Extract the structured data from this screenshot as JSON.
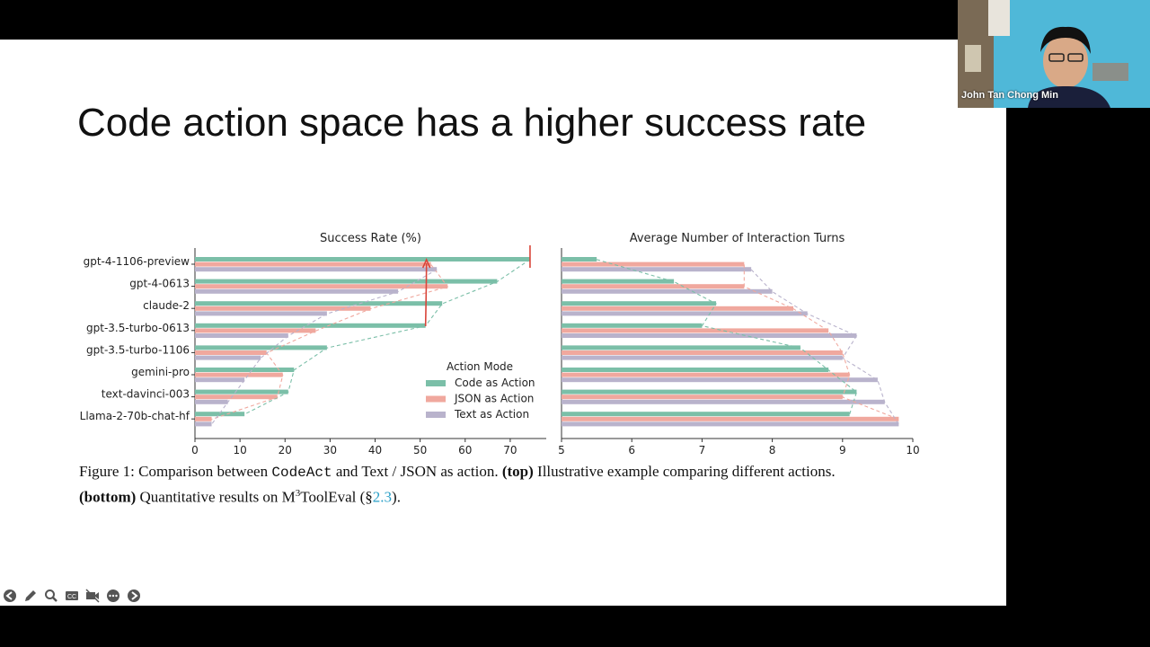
{
  "slide": {
    "title": "Code action space has a higher success rate"
  },
  "video": {
    "participant_name": "John Tan Chong Min"
  },
  "caption": {
    "part1": "Figure 1: Comparison between ",
    "code_term": "CodeAct",
    "part2": " and Text / JSON as action. ",
    "top_label": "(top)",
    "part3": " Illustrative example comparing different actions.",
    "bottom_label": "(bottom)",
    "part4": " Quantitative results on M",
    "superscript": "3",
    "part5": "ToolEval (§",
    "cite": "2.3",
    "part6": ")."
  },
  "toolbar": {
    "icons": [
      "arrow-left-icon",
      "pencil-icon",
      "zoom-icon",
      "captions-icon",
      "video-off-icon",
      "more-icon",
      "arrow-right-icon"
    ]
  },
  "colors": {
    "code": "#7bbfa8",
    "json": "#f0a89e",
    "text": "#b9b3cc",
    "annotation": "#d9453a"
  },
  "chart_data": [
    {
      "type": "bar",
      "orientation": "horizontal",
      "title": "Success Rate (%)",
      "xlabel": "",
      "ylabel": "",
      "xlim": [
        0,
        78
      ],
      "xticks": [
        0,
        10,
        20,
        30,
        40,
        50,
        60,
        70
      ],
      "grid": false,
      "categories": [
        "gpt-4-1106-preview",
        "gpt-4-0613",
        "claude-2",
        "gpt-3.5-turbo-0613",
        "gpt-3.5-turbo-1106",
        "gemini-pro",
        "text-davinci-003",
        "Llama-2-70b-chat-hf"
      ],
      "series": [
        {
          "name": "Code as Action",
          "values": [
            74.4,
            67.1,
            54.9,
            51.2,
            29.3,
            22.0,
            20.7,
            11.0
          ]
        },
        {
          "name": "JSON as Action",
          "values": [
            52.4,
            56.1,
            39.0,
            26.8,
            15.9,
            19.5,
            18.3,
            3.7
          ]
        },
        {
          "name": "Text as Action",
          "values": [
            53.7,
            45.1,
            29.3,
            20.7,
            14.6,
            11.0,
            7.3,
            3.7
          ]
        }
      ],
      "legend": {
        "title": "Action Mode",
        "position": "lower-right"
      }
    },
    {
      "type": "bar",
      "orientation": "horizontal",
      "title": "Average Number of Interaction Turns",
      "xlabel": "",
      "ylabel": "",
      "xlim": [
        5,
        10
      ],
      "xticks": [
        5,
        6,
        7,
        8,
        9,
        10
      ],
      "grid": false,
      "categories": [
        "gpt-4-1106-preview",
        "gpt-4-0613",
        "claude-2",
        "gpt-3.5-turbo-0613",
        "gpt-3.5-turbo-1106",
        "gemini-pro",
        "text-davinci-003",
        "Llama-2-70b-chat-hf"
      ],
      "series": [
        {
          "name": "Code as Action",
          "values": [
            5.5,
            6.6,
            7.2,
            7.0,
            8.4,
            8.8,
            9.2,
            9.1
          ]
        },
        {
          "name": "JSON as Action",
          "values": [
            7.6,
            7.6,
            8.3,
            8.8,
            9.0,
            9.1,
            9.0,
            9.8
          ]
        },
        {
          "name": "Text as Action",
          "values": [
            7.7,
            8.0,
            8.5,
            9.2,
            9.0,
            9.5,
            9.6,
            9.8
          ]
        }
      ]
    }
  ]
}
